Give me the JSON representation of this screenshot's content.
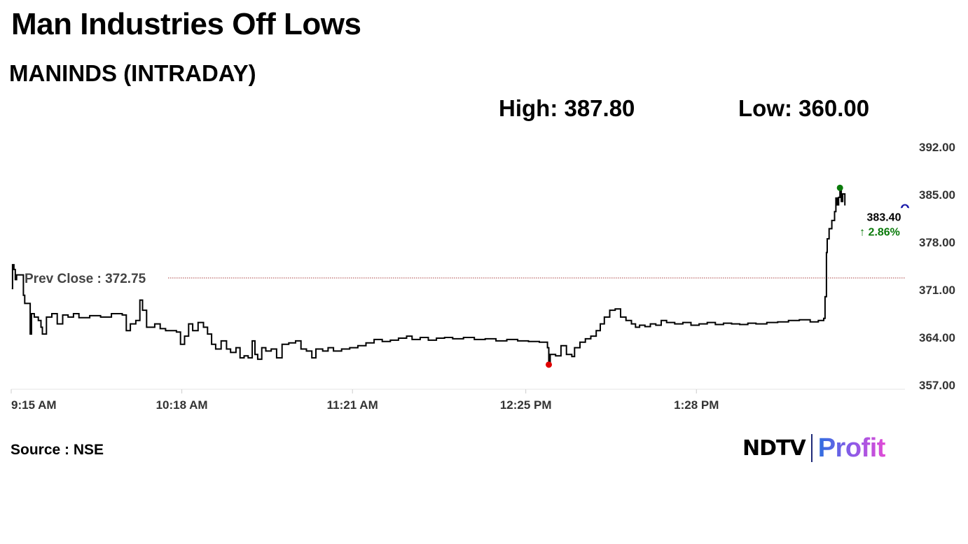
{
  "header": {
    "title": "Man Industries Off Lows",
    "subtitle": "MANINDS (INTRADAY)",
    "high_text": "High: 387.80",
    "low_text": "Low: 360.00"
  },
  "footer": {
    "source": "Source : NSE",
    "logo_ndtv": "NDTV",
    "logo_profit": "Profit"
  },
  "colors": {
    "line": "#000000",
    "prev_close_line": "#a94040",
    "low_marker": "#e00000",
    "high_marker": "#0a7a0a",
    "last_marker": "#1a1aaa",
    "change_up": "#0a7a0a",
    "axis_text": "#333333"
  },
  "chart_data": {
    "type": "line",
    "title": "MANINDS (INTRADAY)",
    "xlabel": "",
    "ylabel": "",
    "x_range_minutes": [
      555,
      885
    ],
    "x_ticks": [
      {
        "t": 555,
        "label": "9:15 AM"
      },
      {
        "t": 618,
        "label": "10:18 AM"
      },
      {
        "t": 681,
        "label": "11:21 AM"
      },
      {
        "t": 745,
        "label": "12:25 PM"
      },
      {
        "t": 808,
        "label": "1:28 PM"
      }
    ],
    "ylim": [
      357,
      392
    ],
    "y_ticks": [
      "392.00",
      "385.00",
      "378.00",
      "371.00",
      "364.00",
      "357.00"
    ],
    "prev_close": 372.75,
    "prev_close_label": "Prev Close : 372.75",
    "last_price_label": "383.40",
    "change_label": "↑ 2.86%",
    "low_point": {
      "t": 753.5,
      "v": 360.0
    },
    "high_point": {
      "t": 861.0,
      "v": 386.0
    },
    "last_point": {
      "t": 885.0,
      "v": 383.4
    },
    "series": [
      {
        "values": [
          [
            555.2,
            371.2
          ],
          [
            555.5,
            374.7
          ],
          [
            556.0,
            374.0
          ],
          [
            556.5,
            372.5
          ],
          [
            557.0,
            373.2
          ],
          [
            559.5,
            370.2
          ],
          [
            560.0,
            369.0
          ],
          [
            562.0,
            364.5
          ],
          [
            562.5,
            367.5
          ],
          [
            563.5,
            367.0
          ],
          [
            565.0,
            366.5
          ],
          [
            566.0,
            365.5
          ],
          [
            566.5,
            364.5
          ],
          [
            568.0,
            367.0
          ],
          [
            570.0,
            367.5
          ],
          [
            572.0,
            366.0
          ],
          [
            574.0,
            367.3
          ],
          [
            576.0,
            367.0
          ],
          [
            578.0,
            367.5
          ],
          [
            580.0,
            366.9
          ],
          [
            584.0,
            367.2
          ],
          [
            588.0,
            367.0
          ],
          [
            592.0,
            367.5
          ],
          [
            596.0,
            367.3
          ],
          [
            597.5,
            365.0
          ],
          [
            599.0,
            366.0
          ],
          [
            601.0,
            366.5
          ],
          [
            602.5,
            369.5
          ],
          [
            603.5,
            368.0
          ],
          [
            605.0,
            365.5
          ],
          [
            608.0,
            366.0
          ],
          [
            610.0,
            365.3
          ],
          [
            612.0,
            365.0
          ],
          [
            616.0,
            364.8
          ],
          [
            617.5,
            363.0
          ],
          [
            619.0,
            364.2
          ],
          [
            620.5,
            366.0
          ],
          [
            622.0,
            365.0
          ],
          [
            624.0,
            366.2
          ],
          [
            626.0,
            365.5
          ],
          [
            627.5,
            364.5
          ],
          [
            629.0,
            363.0
          ],
          [
            630.5,
            362.3
          ],
          [
            632.5,
            363.5
          ],
          [
            634.5,
            362.3
          ],
          [
            636.0,
            361.8
          ],
          [
            638.0,
            362.5
          ],
          [
            639.5,
            361.0
          ],
          [
            641.0,
            361.3
          ],
          [
            642.5,
            361.0
          ],
          [
            644.0,
            363.5
          ],
          [
            645.0,
            361.5
          ],
          [
            646.0,
            360.8
          ],
          [
            647.5,
            362.5
          ],
          [
            649.0,
            362.0
          ],
          [
            651.0,
            362.3
          ],
          [
            653.0,
            361.0
          ],
          [
            655.0,
            363.0
          ],
          [
            657.5,
            363.2
          ],
          [
            660.0,
            363.5
          ],
          [
            662.0,
            362.3
          ],
          [
            664.0,
            362.0
          ],
          [
            666.0,
            361.0
          ],
          [
            667.5,
            362.3
          ],
          [
            670.0,
            362.0
          ],
          [
            672.0,
            362.5
          ],
          [
            674.0,
            362.0
          ],
          [
            677.0,
            362.3
          ],
          [
            680.0,
            362.5
          ],
          [
            683.0,
            362.8
          ],
          [
            686.0,
            363.2
          ],
          [
            689.0,
            363.7
          ],
          [
            692.0,
            363.4
          ],
          [
            695.0,
            363.6
          ],
          [
            698.0,
            363.9
          ],
          [
            701.0,
            364.2
          ],
          [
            703.0,
            363.7
          ],
          [
            706.0,
            364.0
          ],
          [
            709.0,
            363.6
          ],
          [
            712.0,
            363.9
          ],
          [
            715.0,
            364.0
          ],
          [
            718.0,
            363.8
          ],
          [
            722.0,
            364.0
          ],
          [
            726.0,
            363.7
          ],
          [
            730.0,
            363.8
          ],
          [
            734.0,
            363.5
          ],
          [
            738.0,
            363.7
          ],
          [
            742.0,
            363.5
          ],
          [
            746.0,
            363.4
          ],
          [
            750.0,
            363.3
          ],
          [
            753.0,
            362.5
          ],
          [
            753.5,
            360.3
          ],
          [
            754.0,
            361.5
          ],
          [
            756.0,
            361.3
          ],
          [
            758.0,
            362.8
          ],
          [
            760.0,
            361.5
          ],
          [
            762.0,
            361.2
          ],
          [
            763.0,
            362.5
          ],
          [
            765.0,
            363.3
          ],
          [
            767.0,
            363.8
          ],
          [
            769.0,
            364.2
          ],
          [
            771.0,
            365.0
          ],
          [
            772.5,
            366.0
          ],
          [
            774.0,
            367.0
          ],
          [
            776.0,
            368.0
          ],
          [
            778.0,
            368.2
          ],
          [
            780.0,
            367.0
          ],
          [
            782.0,
            366.5
          ],
          [
            784.0,
            366.0
          ],
          [
            785.5,
            365.5
          ],
          [
            787.0,
            365.8
          ],
          [
            789.0,
            365.6
          ],
          [
            791.0,
            366.0
          ],
          [
            793.0,
            365.8
          ],
          [
            795.0,
            366.5
          ],
          [
            797.0,
            366.2
          ],
          [
            800.0,
            366.0
          ],
          [
            803.0,
            366.2
          ],
          [
            806.0,
            365.8
          ],
          [
            809.0,
            366.0
          ],
          [
            812.0,
            366.2
          ],
          [
            815.0,
            365.9
          ],
          [
            818.0,
            366.1
          ],
          [
            821.0,
            366.0
          ],
          [
            824.0,
            365.9
          ],
          [
            827.0,
            366.1
          ],
          [
            830.0,
            366.0
          ],
          [
            834.0,
            366.2
          ],
          [
            838.0,
            366.3
          ],
          [
            842.0,
            366.5
          ],
          [
            846.0,
            366.6
          ],
          [
            850.0,
            366.3
          ],
          [
            853.0,
            366.5
          ],
          [
            855.0,
            366.8
          ],
          [
            855.5,
            370.0
          ],
          [
            856.0,
            376.5
          ],
          [
            856.3,
            378.5
          ],
          [
            857.0,
            380.0
          ],
          [
            858.0,
            381.2
          ],
          [
            859.0,
            382.5
          ],
          [
            859.5,
            384.5
          ],
          [
            860.0,
            383.5
          ],
          [
            860.5,
            384.6
          ],
          [
            861.0,
            386.0
          ],
          [
            861.5,
            384.0
          ],
          [
            862.0,
            385.1
          ],
          [
            862.8,
            383.4
          ]
        ]
      }
    ]
  }
}
